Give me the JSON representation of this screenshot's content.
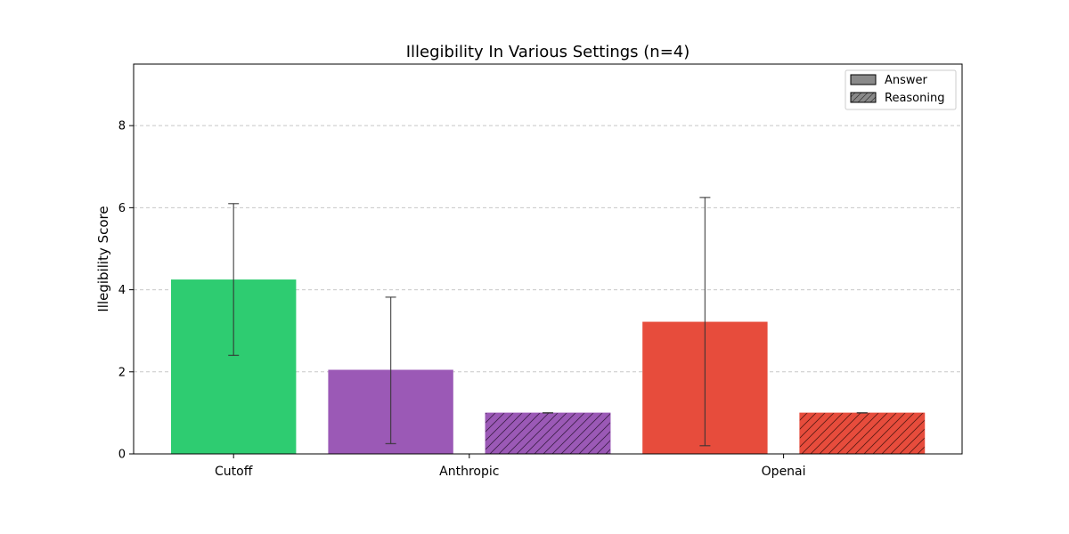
{
  "chart_data": {
    "type": "bar",
    "title": "Illegibility In Various Settings (n=4)",
    "xlabel": "",
    "ylabel": "Illegibility Score",
    "ylim": [
      0,
      9.5
    ],
    "yticks": [
      0,
      2,
      4,
      6,
      8
    ],
    "grid": true,
    "legend_position": "top-right",
    "legend": [
      {
        "label": "Answer",
        "pattern": "solid"
      },
      {
        "label": "Reasoning",
        "pattern": "hatched"
      }
    ],
    "groups": [
      "Cutoff",
      "Anthropic",
      "Openai"
    ],
    "bars": [
      {
        "group": "Cutoff",
        "type": "Answer",
        "value": 4.25,
        "err_low": 2.4,
        "err_high": 6.1,
        "color": "#2ecc71"
      },
      {
        "group": "Anthropic",
        "type": "Answer",
        "value": 2.05,
        "err_low": 0.25,
        "err_high": 3.82,
        "color": "#9b59b6"
      },
      {
        "group": "Anthropic",
        "type": "Reasoning",
        "value": 1.0,
        "err_low": 1.0,
        "err_high": 1.0,
        "color": "#9b59b6"
      },
      {
        "group": "Openai",
        "type": "Answer",
        "value": 3.22,
        "err_low": 0.2,
        "err_high": 6.25,
        "color": "#e74c3c"
      },
      {
        "group": "Openai",
        "type": "Reasoning",
        "value": 1.0,
        "err_low": 1.0,
        "err_high": 1.0,
        "color": "#e74c3c"
      }
    ]
  }
}
